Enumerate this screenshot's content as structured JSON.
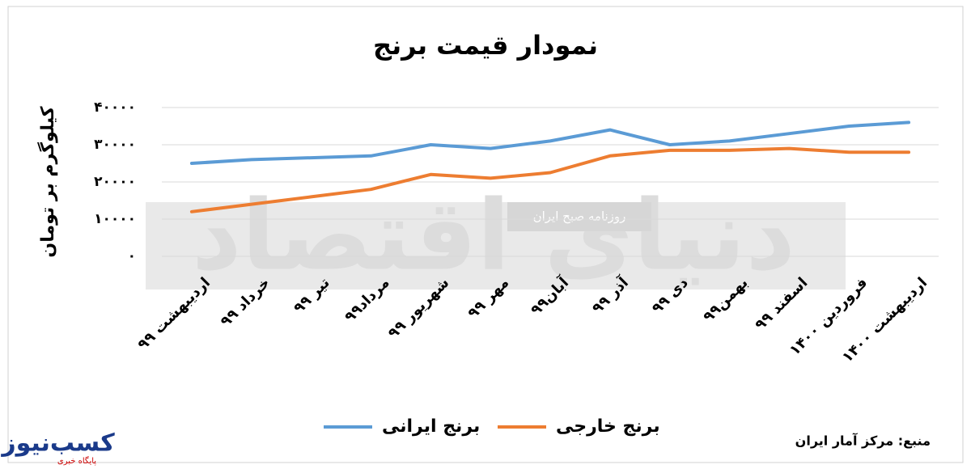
{
  "chart_data": {
    "type": "line",
    "title": "نمودار قیمت برنج",
    "y_label": "کیلوگرم بر تومان",
    "categories": [
      "اردیبهشت ۹۹",
      "خرداد ۹۹",
      "تیر ۹۹",
      "مرداد۹۹",
      "شهریور ۹۹",
      "مهر ۹۹",
      "آبان۹۹",
      "آذر ۹۹",
      "دی ۹۹",
      "بهمن۹۹",
      "اسفند ۹۹",
      "فروردین ۱۴۰۰",
      "اردیبهشت ۱۴۰۰"
    ],
    "series": [
      {
        "name": "برنج ایرانی",
        "color": "#5b9bd5",
        "values": [
          25000,
          26000,
          26500,
          27000,
          30000,
          29000,
          31000,
          34000,
          30000,
          31000,
          33000,
          35000,
          36000
        ]
      },
      {
        "name": "برنج خارجی",
        "color": "#ed7d31",
        "values": [
          12000,
          14000,
          16000,
          18000,
          22000,
          21000,
          22500,
          27000,
          28500,
          28500,
          29000,
          28000,
          28000
        ]
      }
    ],
    "ylim": [
      0,
      40000
    ],
    "yticks": [
      {
        "value": 0,
        "label": "۰"
      },
      {
        "value": 10000,
        "label": "۱۰۰۰۰"
      },
      {
        "value": 20000,
        "label": "۲۰۰۰۰"
      },
      {
        "value": 30000,
        "label": "۳۰۰۰۰"
      },
      {
        "value": 40000,
        "label": "۴۰۰۰۰"
      }
    ],
    "grid": true,
    "source": "منبع: مرکز آمار ایران"
  },
  "watermark": {
    "main": "دنیای اقتصاد",
    "sub": "روزنامه صبح ایران"
  },
  "logo": {
    "name": "کسب‌نیوز",
    "tagline": "پایگاه خبری"
  }
}
